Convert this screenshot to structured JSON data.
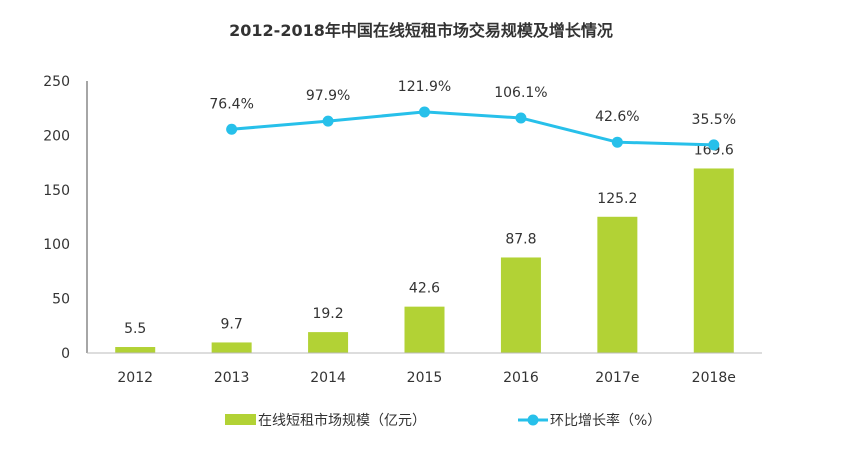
{
  "chart_data": {
    "type": "bar",
    "title": "2012-2018年中国在线短租市场交易规模及增长情况",
    "categories": [
      "2012",
      "2013",
      "2014",
      "2015",
      "2016",
      "2017e",
      "2018e"
    ],
    "ylim": [
      0,
      250
    ],
    "yticks": [
      0,
      50,
      100,
      150,
      200,
      250
    ],
    "y2lim": [
      -510,
      203
    ],
    "y2_axis_visible": false,
    "grid": false,
    "legend_position": "bottom",
    "series": [
      {
        "name": "在线短租市场规模（亿元）",
        "type": "bar",
        "axis": "left",
        "color": "#b2d235",
        "values": [
          5.5,
          9.7,
          19.2,
          42.6,
          87.8,
          125.2,
          169.6
        ],
        "labels": [
          "5.5",
          "9.7",
          "19.2",
          "42.6",
          "87.8",
          "125.2",
          "169.6"
        ]
      },
      {
        "name": "环比增长率（%）",
        "type": "line",
        "axis": "right",
        "color": "#27c0ea",
        "values": [
          null,
          76.4,
          97.9,
          121.9,
          106.1,
          42.6,
          35.5
        ],
        "labels": [
          "",
          "76.4%",
          "97.9%",
          "121.9%",
          "106.1%",
          "42.6%",
          "35.5%"
        ]
      }
    ]
  }
}
